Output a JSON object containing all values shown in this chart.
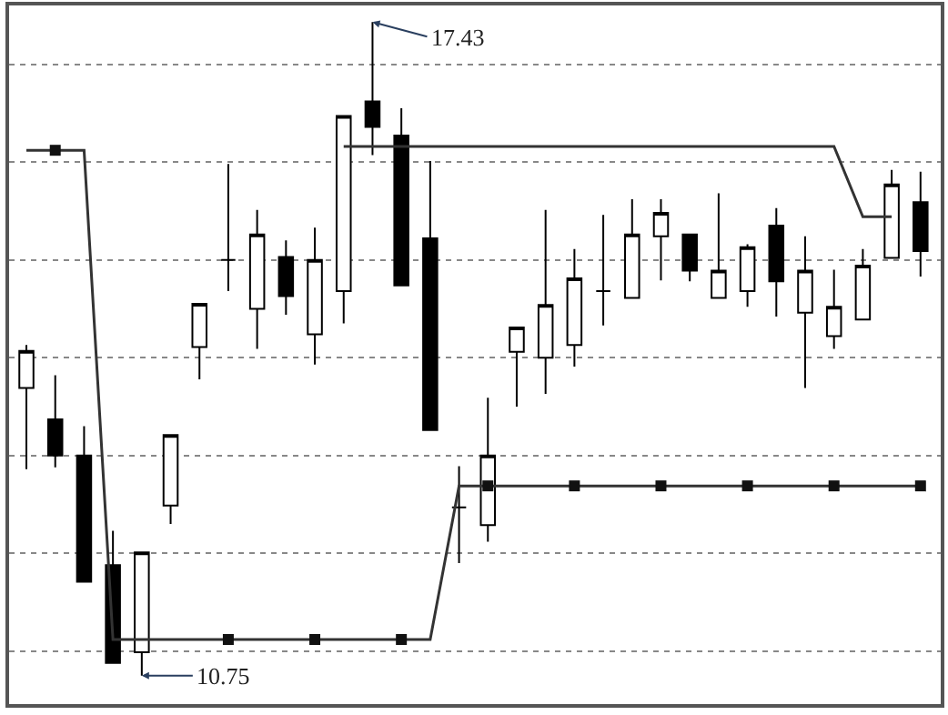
{
  "chart_data": {
    "type": "candlestick",
    "categories": [
      null,
      null,
      null,
      null,
      null,
      null,
      null,
      null,
      null,
      null,
      null,
      null,
      null,
      null,
      null,
      null,
      null,
      null,
      null,
      null,
      null,
      null,
      null,
      null,
      null,
      null,
      null,
      null,
      null,
      null,
      null,
      null
    ],
    "ohlc": [
      [
        13.69,
        14.13,
        12.86,
        14.07
      ],
      [
        13.37,
        13.82,
        12.88,
        13.0
      ],
      [
        13.0,
        13.3,
        11.71,
        11.71
      ],
      [
        11.88,
        12.23,
        10.88,
        10.88
      ],
      [
        10.99,
        12.01,
        10.75,
        12.01
      ],
      [
        12.49,
        13.21,
        12.3,
        13.21
      ],
      [
        14.11,
        14.55,
        13.78,
        14.55
      ],
      [
        15.0,
        15.98,
        14.68,
        15.0
      ],
      [
        14.5,
        15.51,
        14.09,
        15.26
      ],
      [
        15.03,
        15.2,
        14.44,
        14.63
      ],
      [
        14.24,
        15.33,
        13.93,
        15.0
      ],
      [
        14.68,
        16.47,
        14.35,
        16.47
      ],
      [
        16.62,
        17.43,
        16.07,
        16.36
      ],
      [
        16.27,
        16.55,
        14.74,
        14.74
      ],
      [
        15.22,
        16.01,
        13.26,
        13.26
      ],
      [
        12.47,
        12.89,
        11.9,
        12.47
      ],
      [
        12.29,
        13.59,
        12.12,
        13.0
      ],
      [
        14.06,
        14.31,
        13.5,
        14.31
      ],
      [
        14.0,
        15.51,
        13.63,
        14.54
      ],
      [
        14.13,
        15.11,
        13.91,
        14.81
      ],
      [
        14.68,
        15.46,
        14.33,
        14.68
      ],
      [
        14.61,
        15.62,
        14.61,
        15.26
      ],
      [
        15.24,
        15.62,
        14.79,
        15.48
      ],
      [
        15.26,
        15.26,
        14.78,
        14.89
      ],
      [
        14.61,
        15.68,
        14.61,
        14.89
      ],
      [
        14.68,
        15.16,
        14.52,
        15.13
      ],
      [
        15.35,
        15.53,
        14.42,
        14.78
      ],
      [
        14.46,
        15.24,
        13.69,
        14.89
      ],
      [
        14.22,
        14.9,
        14.09,
        14.52
      ],
      [
        14.39,
        15.11,
        14.39,
        14.94
      ],
      [
        15.02,
        15.92,
        15.02,
        15.77
      ],
      [
        15.59,
        15.9,
        14.83,
        15.09
      ]
    ],
    "series": [
      {
        "type": "line",
        "color": "#333333",
        "marker": "none",
        "values": [
          16.12,
          16.12,
          16.12,
          11.12,
          11.12,
          11.12,
          11.12,
          11.12,
          11.12,
          11.12,
          11.12,
          11.12,
          11.12,
          11.12,
          11.12,
          12.69,
          12.69,
          12.69,
          12.69,
          12.69,
          12.69,
          12.69,
          12.69,
          12.69,
          12.69,
          12.69,
          12.69,
          12.69,
          12.69,
          12.69,
          12.69,
          12.69
        ]
      },
      {
        "type": "scatter",
        "color": "#111111",
        "marker": "square",
        "values": [
          null,
          16.12,
          null,
          null,
          null,
          null,
          null,
          11.12,
          null,
          null,
          11.12,
          null,
          null,
          11.12,
          null,
          null,
          12.69,
          null,
          null,
          12.69,
          null,
          null,
          12.69,
          null,
          null,
          12.69,
          null,
          null,
          12.69,
          null,
          null,
          12.69
        ]
      },
      {
        "type": "line",
        "color": "#333333",
        "marker": "none",
        "values": [
          null,
          null,
          null,
          null,
          null,
          null,
          null,
          null,
          null,
          null,
          null,
          16.16,
          16.16,
          16.16,
          16.16,
          16.16,
          16.16,
          16.16,
          16.16,
          16.16,
          16.16,
          16.16,
          16.16,
          16.16,
          16.16,
          16.16,
          16.16,
          16.16,
          16.16,
          15.44,
          15.44,
          null
        ]
      }
    ],
    "annotations": [
      "17.43",
      "10.75"
    ],
    "ylim": [
      10.46,
      17.6
    ],
    "yticks": [
      {
        "value": 11,
        "label": null
      },
      {
        "value": 12,
        "label": null
      },
      {
        "value": 13,
        "label": null
      },
      {
        "value": 14,
        "label": null
      },
      {
        "value": 15,
        "label": null
      },
      {
        "value": 16,
        "label": null
      },
      {
        "value": 17,
        "label": null
      }
    ],
    "grid": "y"
  }
}
